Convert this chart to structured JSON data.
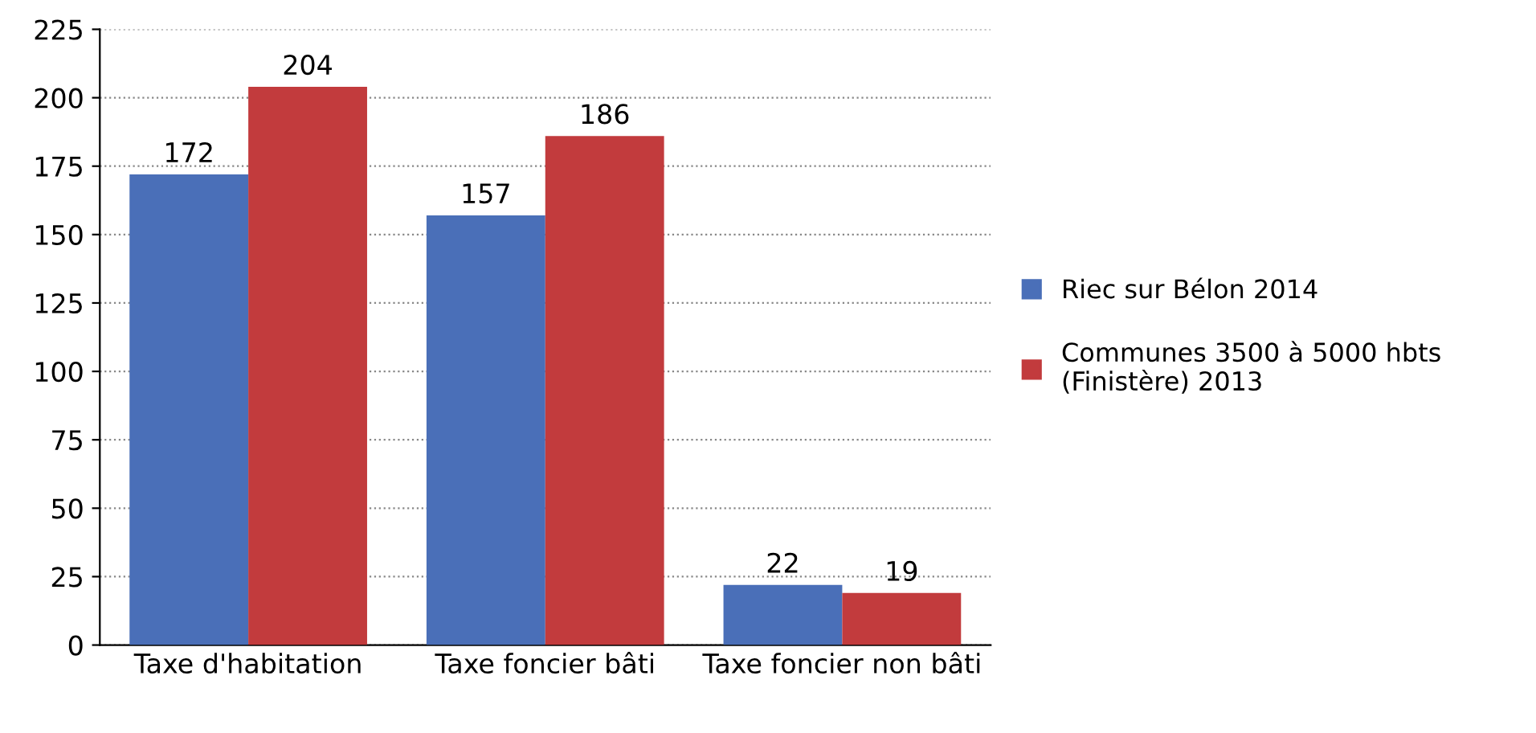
{
  "chart_data": {
    "type": "bar",
    "categories": [
      "Taxe d'habitation",
      "Taxe foncier bâti",
      "Taxe foncier non bâti"
    ],
    "series": [
      {
        "name": "Riec sur Bélon 2014",
        "color": "#4a6fb8",
        "values": [
          172,
          157,
          22
        ]
      },
      {
        "name": "Communes 3500 à 5000 hbts (Finistère) 2013",
        "color": "#c23b3d",
        "values": [
          204,
          186,
          19
        ]
      }
    ],
    "ylim": [
      0,
      225
    ],
    "yticks": [
      0,
      25,
      50,
      75,
      100,
      125,
      150,
      175,
      200,
      225
    ],
    "grid": "y",
    "legend": "right",
    "data_labels": true
  }
}
